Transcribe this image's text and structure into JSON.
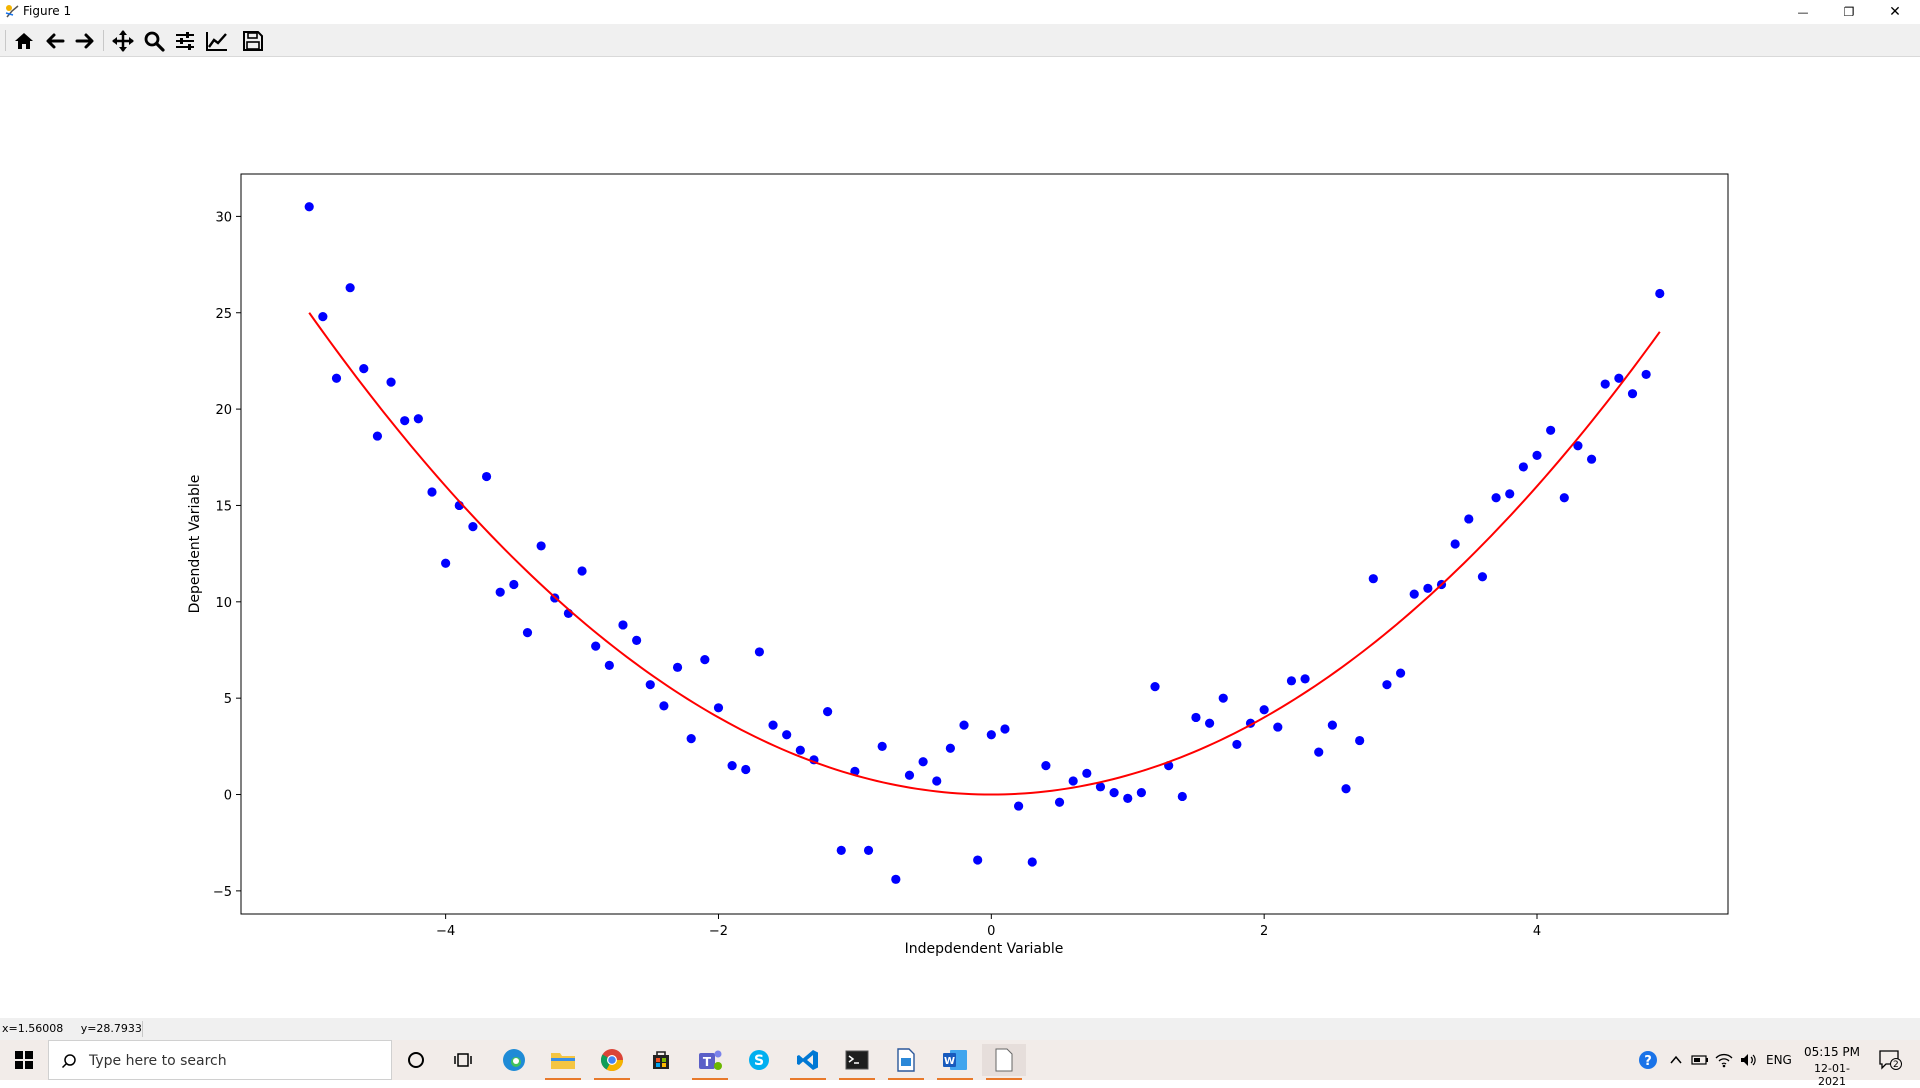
{
  "window": {
    "title": "Figure 1",
    "controls": {
      "minimize": "—",
      "restore": "❐",
      "close": "✕"
    }
  },
  "toolbar": {
    "buttons": [
      "home-icon",
      "back-arrow-icon",
      "forward-arrow-icon",
      "pan-icon",
      "zoom-icon",
      "configure-subplots-icon",
      "edit-axis-icon",
      "save-icon"
    ]
  },
  "status": {
    "coords": "x=1.56008     y=28.7933"
  },
  "chart_data": {
    "type": "scatter",
    "xlabel": "Indepdendent Variable",
    "ylabel": "Dependent Variable",
    "xlim": [
      -5.5,
      5.4
    ],
    "ylim": [
      -6.2,
      32.2
    ],
    "xticks": [
      -4,
      -2,
      0,
      2,
      4
    ],
    "xtick_labels": [
      "−4",
      "−2",
      "0",
      "2",
      "4"
    ],
    "yticks": [
      -5,
      0,
      5,
      10,
      15,
      20,
      25,
      30
    ],
    "ytick_labels": [
      "−5",
      "0",
      "5",
      "10",
      "15",
      "20",
      "25",
      "30"
    ],
    "grid": false,
    "colors": {
      "points": "#0000ff",
      "fit": "#ff0000"
    },
    "series": [
      {
        "type": "scatter",
        "x": [
          -5.0,
          -4.9,
          -4.8,
          -4.7,
          -4.6,
          -4.5,
          -4.4,
          -4.3,
          -4.2,
          -4.1,
          -4.0,
          -3.9,
          -3.8,
          -3.7,
          -3.6,
          -3.5,
          -3.4,
          -3.3,
          -3.2,
          -3.1,
          -3.0,
          -2.9,
          -2.8,
          -2.7,
          -2.6,
          -2.5,
          -2.4,
          -2.3,
          -2.2,
          -2.1,
          -2.0,
          -1.9,
          -1.8,
          -1.7,
          -1.6,
          -1.5,
          -1.4,
          -1.3,
          -1.2,
          -1.1,
          -1.0,
          -0.9,
          -0.8,
          -0.7,
          -0.6,
          -0.5,
          -0.4,
          -0.3,
          -0.2,
          -0.1,
          0.0,
          0.1,
          0.2,
          0.3,
          0.4,
          0.5,
          0.6,
          0.7,
          0.8,
          0.9,
          1.0,
          1.1,
          1.2,
          1.3,
          1.4,
          1.5,
          1.6,
          1.7,
          1.8,
          1.9,
          2.0,
          2.1,
          2.2,
          2.3,
          2.4,
          2.5,
          2.6,
          2.7,
          2.8,
          2.9,
          3.0,
          3.1,
          3.2,
          3.3,
          3.4,
          3.5,
          3.6,
          3.7,
          3.8,
          3.9,
          4.0,
          4.1,
          4.2,
          4.3,
          4.4,
          4.5,
          4.6,
          4.7,
          4.8,
          4.9
        ],
        "y": [
          30.5,
          24.8,
          21.6,
          26.3,
          22.1,
          18.6,
          21.4,
          19.4,
          19.5,
          15.7,
          12.0,
          15.0,
          13.9,
          16.5,
          10.5,
          10.9,
          8.4,
          12.9,
          10.2,
          9.4,
          11.6,
          7.7,
          6.7,
          8.8,
          8.0,
          5.7,
          4.6,
          6.6,
          2.9,
          7.0,
          4.5,
          1.5,
          1.3,
          7.4,
          3.6,
          3.1,
          2.3,
          1.8,
          4.3,
          -2.9,
          1.2,
          -2.9,
          2.5,
          -4.4,
          1.0,
          1.7,
          0.7,
          2.4,
          3.6,
          -3.4,
          3.1,
          3.4,
          -0.6,
          -3.5,
          1.5,
          -0.4,
          0.7,
          1.1,
          0.4,
          0.1,
          -0.2,
          0.1,
          5.6,
          1.5,
          -0.1,
          4.0,
          3.7,
          5.0,
          2.6,
          3.7,
          4.4,
          3.5,
          5.9,
          6.0,
          2.2,
          3.6,
          0.3,
          2.8,
          11.2,
          5.7,
          6.3,
          10.4,
          10.7,
          10.9,
          13.0,
          14.3,
          11.3,
          15.4,
          15.6,
          17.0,
          17.6,
          18.9,
          15.4,
          18.1,
          17.4,
          21.3,
          21.6,
          20.8,
          21.8,
          26.0
        ]
      },
      {
        "type": "line",
        "equation": "y = x^2",
        "x_range": [
          -5.0,
          4.9
        ]
      }
    ]
  },
  "taskbar": {
    "search_placeholder": "Type here to search",
    "apps": [
      "cortana-icon",
      "task-view-icon",
      "edge-icon",
      "file-explorer-icon",
      "chrome-icon",
      "store-icon",
      "teams-icon",
      "skype-icon",
      "vscode-icon",
      "terminal-icon",
      "photos-icon",
      "word-icon",
      "notepad-icon"
    ],
    "tray": {
      "lang": "ENG",
      "time": "05:15 PM",
      "date": "12-01-2021",
      "notifications": "2"
    }
  }
}
